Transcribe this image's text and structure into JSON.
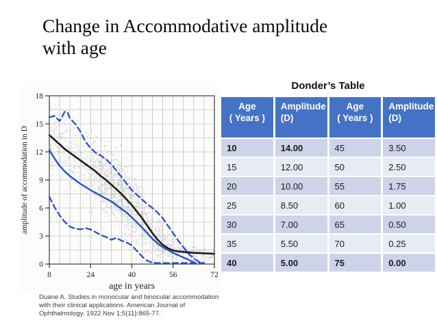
{
  "slide": {
    "title_line1": "Change in Accommodative amplitude",
    "title_line2": "with age",
    "citation_lines": [
      "Duane A. Studies in monocular and binocular accommodation",
      "with their clinical applications. American Journal of",
      "Ophthalmology. 1922 Nov 1;5(11):865-77."
    ]
  },
  "table": {
    "title": "Donder’s Table",
    "colors": {
      "header_bg": "#4472C4",
      "header_text": "#FFFFFF",
      "row_dark": "#CDD3E8",
      "row_light": "#E9EBF4"
    },
    "columns": [
      {
        "line1": "Age",
        "line2": "( Years )",
        "align": "center"
      },
      {
        "line1": "Amplitude",
        "line2": "(D)",
        "align": "left"
      },
      {
        "line1": "Age",
        "line2": "( Years )",
        "align": "center"
      },
      {
        "line1": "Amplitude",
        "line2": "(D)",
        "align": "left"
      }
    ],
    "rows": [
      [
        "10",
        "14.00",
        "45",
        "3.50"
      ],
      [
        "15",
        "12.00",
        "50",
        "2.50"
      ],
      [
        "20",
        "10.00",
        "55",
        "1.75"
      ],
      [
        "25",
        "8.50",
        "60",
        "1.00"
      ],
      [
        "30",
        "7.00",
        "65",
        "0.50"
      ],
      [
        "35",
        "5.50",
        "70",
        "0.25"
      ],
      [
        "40",
        "5.00",
        "75",
        "0.00"
      ]
    ],
    "bold_cells": {
      "0": [
        0,
        1
      ],
      "6": [
        0,
        1,
        2,
        3
      ]
    }
  },
  "chart_data": {
    "type": "scatter",
    "title": "",
    "xlabel": "age in years",
    "ylabel": "amplitude of accommodation in D",
    "xlim": [
      8,
      72
    ],
    "ylim": [
      0,
      18
    ],
    "x_ticks": [
      8,
      24,
      40,
      56,
      72
    ],
    "y_ticks": [
      0,
      3,
      6,
      9,
      12,
      15,
      18
    ],
    "grid": {
      "on": true,
      "x_step": 4,
      "y_step": 1.5,
      "color": "#ABABAB"
    },
    "border_color": "#4A4A4A",
    "series": [
      {
        "name": "upper-limit-dashed",
        "style": "dashed",
        "color": "#2A4FC9",
        "width": 2.3,
        "points": [
          [
            8,
            15.7
          ],
          [
            10,
            15.85
          ],
          [
            12,
            15.3
          ],
          [
            14,
            16.3
          ],
          [
            15,
            16.25
          ],
          [
            16,
            15.6
          ],
          [
            18,
            15.0
          ],
          [
            20,
            14.2
          ],
          [
            22,
            13.1
          ],
          [
            24,
            12.4
          ],
          [
            26,
            11.9
          ],
          [
            28,
            11.6
          ],
          [
            30,
            11.2
          ],
          [
            32,
            10.7
          ],
          [
            34,
            10.0
          ],
          [
            36,
            9.3
          ],
          [
            38,
            8.6
          ],
          [
            40,
            7.9
          ],
          [
            42,
            7.4
          ],
          [
            44,
            6.9
          ],
          [
            46,
            6.4
          ],
          [
            48,
            6.0
          ],
          [
            50,
            5.5
          ],
          [
            52,
            4.9
          ],
          [
            54,
            4.1
          ],
          [
            56,
            3.3
          ],
          [
            58,
            2.5
          ],
          [
            60,
            1.8
          ],
          [
            62,
            1.1
          ],
          [
            64,
            0.6
          ],
          [
            66,
            0.25
          ],
          [
            68,
            0.1
          ]
        ]
      },
      {
        "name": "mean-black-curve",
        "style": "solid",
        "color": "#1C1C1C",
        "width": 2.6,
        "points": [
          [
            8,
            13.8
          ],
          [
            10,
            13.3
          ],
          [
            12,
            12.8
          ],
          [
            14,
            12.3
          ],
          [
            16,
            11.9
          ],
          [
            18,
            11.5
          ],
          [
            20,
            11.1
          ],
          [
            22,
            10.7
          ],
          [
            24,
            10.3
          ],
          [
            26,
            9.9
          ],
          [
            28,
            9.4
          ],
          [
            30,
            9.0
          ],
          [
            32,
            8.5
          ],
          [
            34,
            8.0
          ],
          [
            36,
            7.5
          ],
          [
            38,
            6.9
          ],
          [
            40,
            6.3
          ],
          [
            42,
            5.6
          ],
          [
            44,
            4.9
          ],
          [
            46,
            4.1
          ],
          [
            48,
            3.3
          ],
          [
            50,
            2.6
          ],
          [
            52,
            2.05
          ],
          [
            54,
            1.7
          ],
          [
            56,
            1.45
          ],
          [
            58,
            1.35
          ],
          [
            60,
            1.3
          ],
          [
            64,
            1.2
          ],
          [
            68,
            1.15
          ],
          [
            72,
            1.1
          ]
        ]
      },
      {
        "name": "mean-blue-curve",
        "style": "solid",
        "color": "#2A4FC9",
        "width": 2.4,
        "points": [
          [
            8,
            12.2
          ],
          [
            10,
            11.3
          ],
          [
            12,
            10.5
          ],
          [
            14,
            9.9
          ],
          [
            16,
            9.4
          ],
          [
            18,
            9.0
          ],
          [
            20,
            8.6
          ],
          [
            22,
            8.25
          ],
          [
            24,
            7.9
          ],
          [
            26,
            7.6
          ],
          [
            28,
            7.3
          ],
          [
            30,
            7.0
          ],
          [
            32,
            6.7
          ],
          [
            34,
            6.3
          ],
          [
            36,
            5.9
          ],
          [
            38,
            5.5
          ],
          [
            40,
            5.0
          ],
          [
            42,
            4.45
          ],
          [
            44,
            3.9
          ],
          [
            46,
            3.3
          ],
          [
            48,
            2.7
          ],
          [
            50,
            2.2
          ],
          [
            52,
            1.8
          ],
          [
            54,
            1.5
          ],
          [
            56,
            1.2
          ],
          [
            58,
            0.95
          ],
          [
            60,
            0.7
          ],
          [
            62,
            0.45
          ],
          [
            64,
            0.2
          ],
          [
            65,
            0.05
          ]
        ]
      },
      {
        "name": "lower-limit-dashed",
        "style": "dashed",
        "color": "#2A4FC9",
        "width": 2.3,
        "points": [
          [
            8,
            7.2
          ],
          [
            10,
            6.1
          ],
          [
            12,
            5.2
          ],
          [
            14,
            4.5
          ],
          [
            16,
            4.0
          ],
          [
            18,
            3.8
          ],
          [
            20,
            3.7
          ],
          [
            22,
            3.85
          ],
          [
            24,
            3.7
          ],
          [
            26,
            3.4
          ],
          [
            28,
            3.1
          ],
          [
            30,
            2.9
          ],
          [
            32,
            2.6
          ],
          [
            34,
            2.8
          ],
          [
            36,
            2.5
          ],
          [
            38,
            2.3
          ],
          [
            40,
            2.0
          ],
          [
            42,
            1.4
          ],
          [
            44,
            0.8
          ],
          [
            46,
            0.35
          ],
          [
            48,
            0.15
          ],
          [
            50,
            0.1
          ],
          [
            54,
            0.1
          ],
          [
            58,
            0.12
          ],
          [
            62,
            0.1
          ],
          [
            66,
            0.12
          ],
          [
            68,
            0.1
          ]
        ]
      }
    ],
    "scatter": {
      "description": "dense cloud of individual gray measurement points between dashed limits",
      "color": "#7A7A7A",
      "opacity": 0.38,
      "seed": 7,
      "count": 2300
    }
  }
}
